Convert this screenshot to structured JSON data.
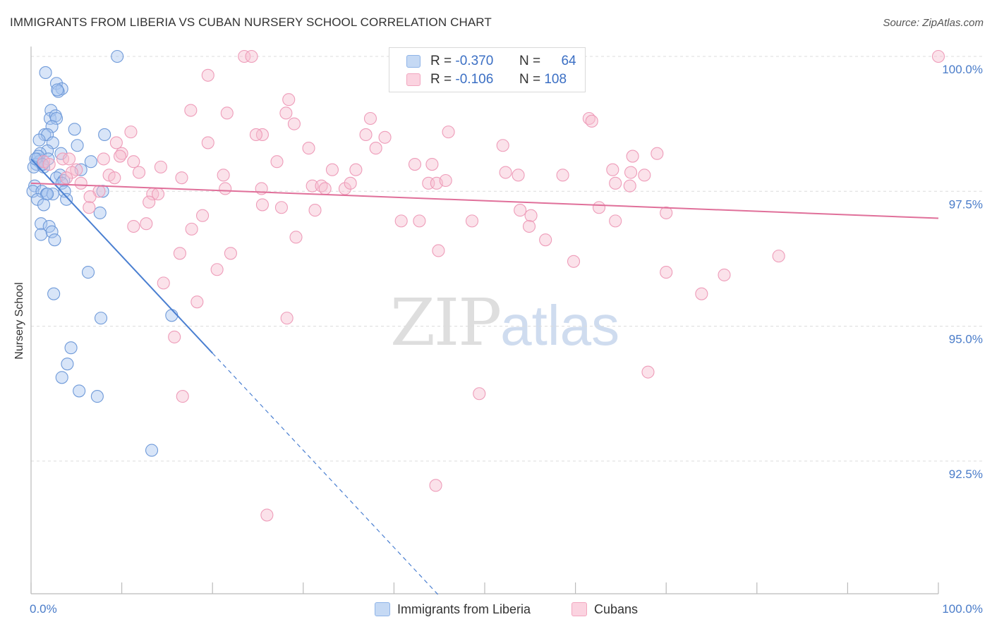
{
  "header": {
    "title": "IMMIGRANTS FROM LIBERIA VS CUBAN NURSERY SCHOOL CORRELATION CHART",
    "source": "Source: ZipAtlas.com"
  },
  "watermark": {
    "zip": "ZIP",
    "atlas": "atlas"
  },
  "legend": {
    "rows": [
      {
        "r_label": "R =",
        "r_value": "-0.370",
        "n_label": "N =",
        "n_value": "64",
        "color": "#8fb4e8"
      },
      {
        "r_label": "R =",
        "r_value": "-0.106",
        "n_label": "N =",
        "n_value": "108",
        "color": "#f2a6bf"
      }
    ]
  },
  "bottom_legend": {
    "items": [
      {
        "label": "Immigrants from Liberia",
        "color": "#8fb4e8"
      },
      {
        "label": "Cubans",
        "color": "#f2a6bf"
      }
    ]
  },
  "chart_data": {
    "type": "scatter",
    "title": "IMMIGRANTS FROM LIBERIA VS CUBAN NURSERY SCHOOL CORRELATION CHART",
    "xlabel": "",
    "ylabel": "Nursery School",
    "xlim": [
      0,
      100
    ],
    "ylim": [
      90.0,
      100.4
    ],
    "x_tick_labels": [
      "0.0%",
      "100.0%"
    ],
    "y_ticks": [
      92.5,
      95.0,
      97.5,
      100.0
    ],
    "y_tick_labels": [
      "92.5%",
      "95.0%",
      "97.5%",
      "100.0%"
    ],
    "grid": "horizontal dashed",
    "legend_position": "top-center",
    "colors": {
      "liberia": "#4a7fd1",
      "liberia_fill": "#a9c6ef",
      "cubans": "#e0709a",
      "cubans_fill": "#f6bfd1"
    },
    "series": [
      {
        "name": "Immigrants from Liberia",
        "r": -0.37,
        "n": 64,
        "trend": {
          "x": [
            0,
            20
          ],
          "y": [
            98.1,
            94.5
          ],
          "dashed_to": [
            45,
            90.0
          ]
        },
        "points": [
          [
            9.5,
            100.0
          ],
          [
            1.6,
            99.7
          ],
          [
            2.8,
            99.5
          ],
          [
            3.4,
            99.4
          ],
          [
            3.0,
            99.35
          ],
          [
            2.9,
            99.38
          ],
          [
            2.2,
            99.0
          ],
          [
            2.1,
            98.85
          ],
          [
            2.7,
            98.9
          ],
          [
            2.8,
            98.85
          ],
          [
            2.3,
            98.7
          ],
          [
            4.8,
            98.65
          ],
          [
            1.5,
            98.55
          ],
          [
            1.8,
            98.55
          ],
          [
            8.1,
            98.55
          ],
          [
            0.9,
            98.45
          ],
          [
            2.4,
            98.4
          ],
          [
            5.1,
            98.35
          ],
          [
            1.8,
            98.25
          ],
          [
            3.3,
            98.2
          ],
          [
            1.0,
            98.2
          ],
          [
            0.7,
            98.1
          ],
          [
            6.6,
            98.05
          ],
          [
            0.9,
            98.05
          ],
          [
            1.2,
            98.0
          ],
          [
            0.6,
            98.0
          ],
          [
            0.3,
            97.95
          ],
          [
            1.4,
            97.95
          ],
          [
            5.5,
            97.9
          ],
          [
            3.2,
            97.8
          ],
          [
            2.8,
            97.75
          ],
          [
            3.6,
            97.7
          ],
          [
            3.4,
            97.65
          ],
          [
            0.4,
            97.6
          ],
          [
            0.2,
            97.5
          ],
          [
            1.2,
            97.5
          ],
          [
            7.9,
            97.5
          ],
          [
            3.7,
            97.5
          ],
          [
            1.7,
            97.45
          ],
          [
            2.4,
            97.45
          ],
          [
            1.8,
            97.45
          ],
          [
            3.9,
            97.35
          ],
          [
            0.7,
            97.35
          ],
          [
            1.4,
            97.25
          ],
          [
            7.6,
            97.1
          ],
          [
            1.1,
            96.9
          ],
          [
            2.0,
            96.85
          ],
          [
            2.3,
            96.75
          ],
          [
            1.1,
            96.7
          ],
          [
            2.6,
            96.6
          ],
          [
            6.3,
            96.0
          ],
          [
            2.5,
            95.6
          ],
          [
            15.5,
            95.2
          ],
          [
            7.7,
            95.15
          ],
          [
            4.4,
            94.6
          ],
          [
            4.0,
            94.3
          ],
          [
            3.4,
            94.05
          ],
          [
            5.3,
            93.8
          ],
          [
            7.3,
            93.7
          ],
          [
            13.3,
            92.7
          ],
          [
            0.8,
            98.15
          ],
          [
            0.5,
            98.1
          ],
          [
            1.9,
            98.1
          ],
          [
            1.3,
            98.0
          ]
        ]
      },
      {
        "name": "Cubans",
        "r": -0.106,
        "n": 108,
        "trend": {
          "x": [
            0,
            100
          ],
          "y": [
            97.65,
            97.0
          ]
        },
        "points": [
          [
            23.5,
            100.0
          ],
          [
            24.3,
            100.0
          ],
          [
            100.0,
            100.0
          ],
          [
            19.5,
            99.65
          ],
          [
            28.4,
            99.2
          ],
          [
            17.6,
            99.0
          ],
          [
            21.6,
            98.95
          ],
          [
            28.1,
            98.95
          ],
          [
            37.4,
            98.85
          ],
          [
            61.5,
            98.85
          ],
          [
            61.8,
            98.8
          ],
          [
            29.0,
            98.75
          ],
          [
            11.0,
            98.6
          ],
          [
            25.5,
            98.55
          ],
          [
            24.8,
            98.55
          ],
          [
            36.9,
            98.55
          ],
          [
            46.0,
            98.6
          ],
          [
            39.0,
            98.5
          ],
          [
            9.4,
            98.4
          ],
          [
            19.5,
            98.4
          ],
          [
            30.6,
            98.3
          ],
          [
            38.0,
            98.3
          ],
          [
            52.0,
            98.35
          ],
          [
            10.0,
            98.2
          ],
          [
            9.8,
            98.15
          ],
          [
            66.3,
            98.15
          ],
          [
            69.0,
            98.2
          ],
          [
            27.1,
            98.05
          ],
          [
            11.3,
            98.05
          ],
          [
            3.5,
            98.1
          ],
          [
            4.2,
            98.1
          ],
          [
            8.0,
            98.1
          ],
          [
            1.4,
            98.05
          ],
          [
            2.0,
            98.0
          ],
          [
            42.3,
            98.0
          ],
          [
            44.2,
            98.0
          ],
          [
            14.3,
            97.95
          ],
          [
            5.0,
            97.9
          ],
          [
            11.9,
            97.85
          ],
          [
            33.2,
            97.9
          ],
          [
            35.8,
            97.9
          ],
          [
            64.1,
            97.9
          ],
          [
            4.5,
            97.85
          ],
          [
            8.6,
            97.8
          ],
          [
            16.6,
            97.75
          ],
          [
            21.2,
            97.8
          ],
          [
            52.3,
            97.85
          ],
          [
            53.7,
            97.8
          ],
          [
            58.6,
            97.8
          ],
          [
            67.6,
            97.8
          ],
          [
            66.1,
            97.85
          ],
          [
            9.2,
            97.75
          ],
          [
            3.9,
            97.75
          ],
          [
            5.5,
            97.65
          ],
          [
            21.4,
            97.55
          ],
          [
            25.4,
            97.55
          ],
          [
            31.0,
            97.6
          ],
          [
            32.0,
            97.6
          ],
          [
            34.6,
            97.55
          ],
          [
            35.2,
            97.65
          ],
          [
            43.8,
            97.65
          ],
          [
            44.7,
            97.65
          ],
          [
            45.7,
            97.7
          ],
          [
            64.4,
            97.65
          ],
          [
            66.0,
            97.6
          ],
          [
            7.5,
            97.5
          ],
          [
            13.4,
            97.45
          ],
          [
            14.0,
            97.45
          ],
          [
            6.5,
            97.4
          ],
          [
            13.0,
            97.3
          ],
          [
            6.4,
            97.2
          ],
          [
            27.6,
            97.2
          ],
          [
            25.5,
            97.25
          ],
          [
            18.9,
            97.05
          ],
          [
            31.3,
            97.15
          ],
          [
            53.9,
            97.15
          ],
          [
            55.1,
            97.05
          ],
          [
            62.6,
            97.2
          ],
          [
            70.0,
            97.1
          ],
          [
            40.8,
            96.95
          ],
          [
            42.8,
            96.95
          ],
          [
            48.6,
            96.95
          ],
          [
            54.9,
            96.85
          ],
          [
            12.7,
            96.9
          ],
          [
            11.3,
            96.85
          ],
          [
            17.7,
            96.8
          ],
          [
            64.4,
            96.95
          ],
          [
            29.2,
            96.65
          ],
          [
            56.7,
            96.6
          ],
          [
            44.9,
            96.4
          ],
          [
            16.4,
            96.35
          ],
          [
            22.0,
            96.35
          ],
          [
            82.4,
            96.3
          ],
          [
            59.8,
            96.2
          ],
          [
            20.5,
            96.05
          ],
          [
            76.4,
            95.95
          ],
          [
            70.0,
            96.0
          ],
          [
            14.6,
            95.8
          ],
          [
            73.9,
            95.6
          ],
          [
            18.3,
            95.45
          ],
          [
            28.2,
            95.15
          ],
          [
            15.8,
            94.8
          ],
          [
            68.0,
            94.15
          ],
          [
            49.4,
            93.75
          ],
          [
            16.7,
            93.7
          ],
          [
            44.6,
            92.05
          ],
          [
            26.0,
            91.5
          ],
          [
            32.4,
            97.55
          ]
        ]
      }
    ]
  }
}
